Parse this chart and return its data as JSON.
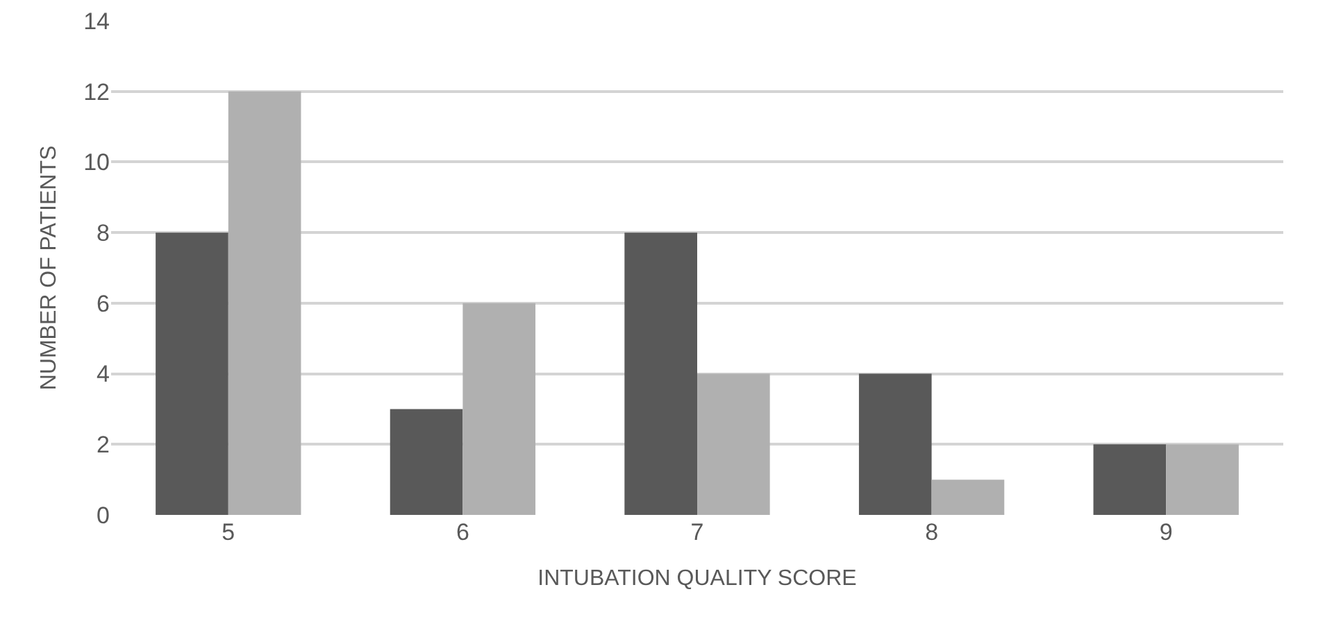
{
  "chart_data": {
    "type": "bar",
    "xlabel": "INTUBATION QUALITY SCORE",
    "ylabel": "NUMBER OF PATIENTS",
    "categories": [
      "5",
      "6",
      "7",
      "8",
      "9"
    ],
    "series": [
      {
        "color": "#595959",
        "values": [
          8,
          3,
          8,
          4,
          2
        ]
      },
      {
        "color": "#b0b0b0",
        "values": [
          12,
          6,
          4,
          1,
          2
        ]
      }
    ],
    "ylim": [
      0,
      14
    ],
    "yticks": [
      0,
      2,
      4,
      6,
      8,
      10,
      12,
      14
    ],
    "grid": "y"
  }
}
